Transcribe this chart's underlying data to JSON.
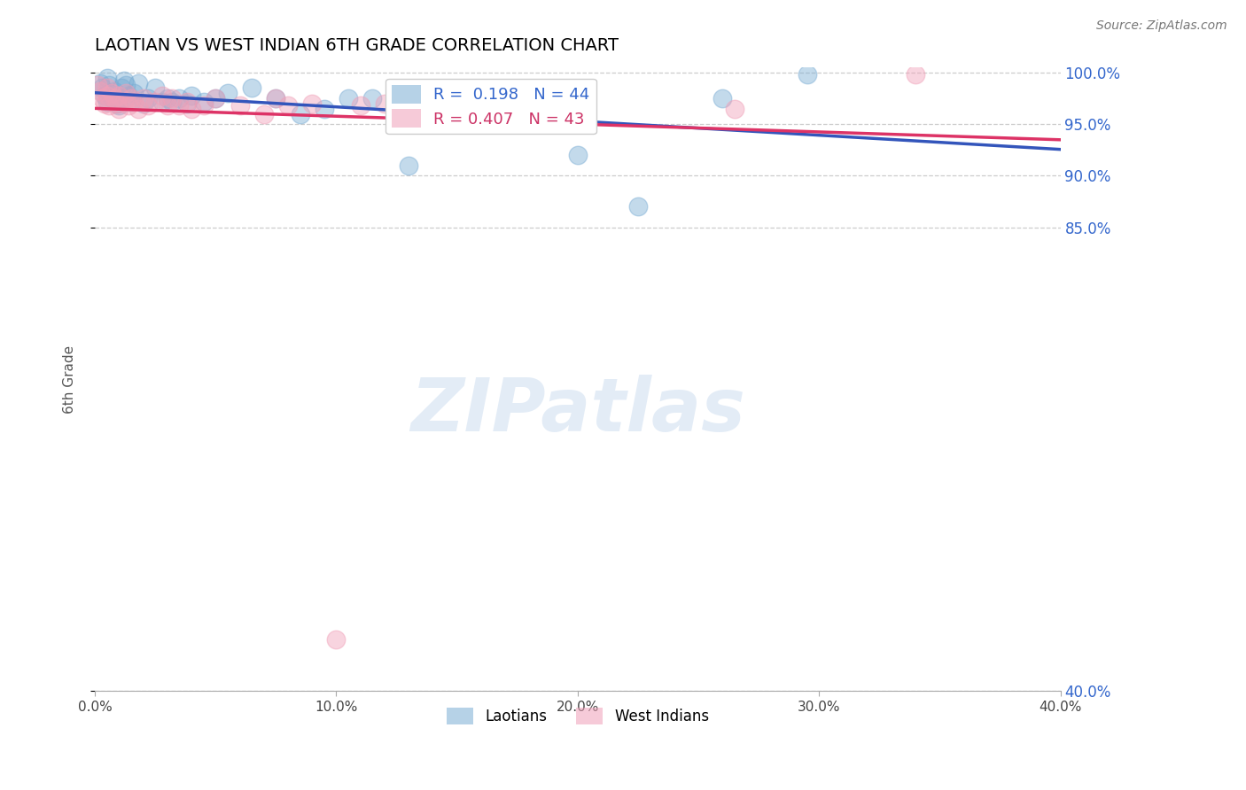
{
  "title": "LAOTIAN VS WEST INDIAN 6TH GRADE CORRELATION CHART",
  "ylabel": "6th Grade",
  "source_text": "Source: ZipAtlas.com",
  "xlim": [
    0.0,
    0.4
  ],
  "ylim": [
    0.4,
    1.005
  ],
  "ytick_vals": [
    0.4,
    0.85,
    0.9,
    0.95,
    1.0
  ],
  "ytick_labels": [
    "40.0%",
    "85.0%",
    "90.0%",
    "95.0%",
    "100.0%"
  ],
  "xtick_vals": [
    0.0,
    0.1,
    0.2,
    0.3,
    0.4
  ],
  "xtick_labels": [
    "0.0%",
    "10.0%",
    "20.0%",
    "30.0%",
    "40.0%"
  ],
  "grid_color": "#cccccc",
  "blue_color": "#7aadd4",
  "pink_color": "#f0a0b8",
  "blue_line_color": "#3355bb",
  "pink_line_color": "#dd3366",
  "legend_R_blue": "0.198",
  "legend_N_blue": "44",
  "legend_R_pink": "0.407",
  "legend_N_pink": "43",
  "legend_label_blue": "Laotians",
  "legend_label_pink": "West Indians",
  "watermark_text": "ZIPatlas",
  "laotian_x": [
    0.002,
    0.003,
    0.004,
    0.005,
    0.005,
    0.006,
    0.006,
    0.007,
    0.008,
    0.009,
    0.01,
    0.01,
    0.011,
    0.012,
    0.013,
    0.014,
    0.015,
    0.016,
    0.018,
    0.02,
    0.022,
    0.025,
    0.028,
    0.03,
    0.032,
    0.035,
    0.038,
    0.04,
    0.045,
    0.05,
    0.055,
    0.065,
    0.075,
    0.085,
    0.095,
    0.105,
    0.115,
    0.13,
    0.15,
    0.175,
    0.2,
    0.225,
    0.26,
    0.295
  ],
  "laotian_y": [
    0.99,
    0.985,
    0.978,
    0.995,
    0.972,
    0.988,
    0.98,
    0.975,
    0.982,
    0.97,
    0.968,
    0.975,
    0.985,
    0.992,
    0.988,
    0.978,
    0.972,
    0.98,
    0.99,
    0.97,
    0.975,
    0.985,
    0.972,
    0.975,
    0.972,
    0.975,
    0.97,
    0.978,
    0.972,
    0.975,
    0.98,
    0.985,
    0.975,
    0.96,
    0.965,
    0.975,
    0.975,
    0.91,
    0.975,
    0.965,
    0.92,
    0.87,
    0.975,
    0.998
  ],
  "westindian_x": [
    0.001,
    0.002,
    0.003,
    0.004,
    0.005,
    0.005,
    0.006,
    0.007,
    0.008,
    0.009,
    0.01,
    0.01,
    0.012,
    0.013,
    0.014,
    0.015,
    0.016,
    0.018,
    0.02,
    0.022,
    0.025,
    0.028,
    0.03,
    0.032,
    0.035,
    0.038,
    0.04,
    0.045,
    0.05,
    0.06,
    0.07,
    0.075,
    0.08,
    0.09,
    0.1,
    0.11,
    0.12,
    0.14,
    0.16,
    0.18,
    0.2,
    0.265,
    0.34
  ],
  "westindian_y": [
    0.988,
    0.982,
    0.975,
    0.97,
    0.985,
    0.978,
    0.968,
    0.98,
    0.975,
    0.97,
    0.978,
    0.965,
    0.972,
    0.98,
    0.968,
    0.975,
    0.972,
    0.965,
    0.975,
    0.968,
    0.972,
    0.978,
    0.968,
    0.975,
    0.968,
    0.972,
    0.965,
    0.968,
    0.975,
    0.968,
    0.96,
    0.975,
    0.968,
    0.97,
    0.45,
    0.968,
    0.97,
    0.975,
    0.968,
    0.975,
    0.978,
    0.965,
    0.998
  ]
}
